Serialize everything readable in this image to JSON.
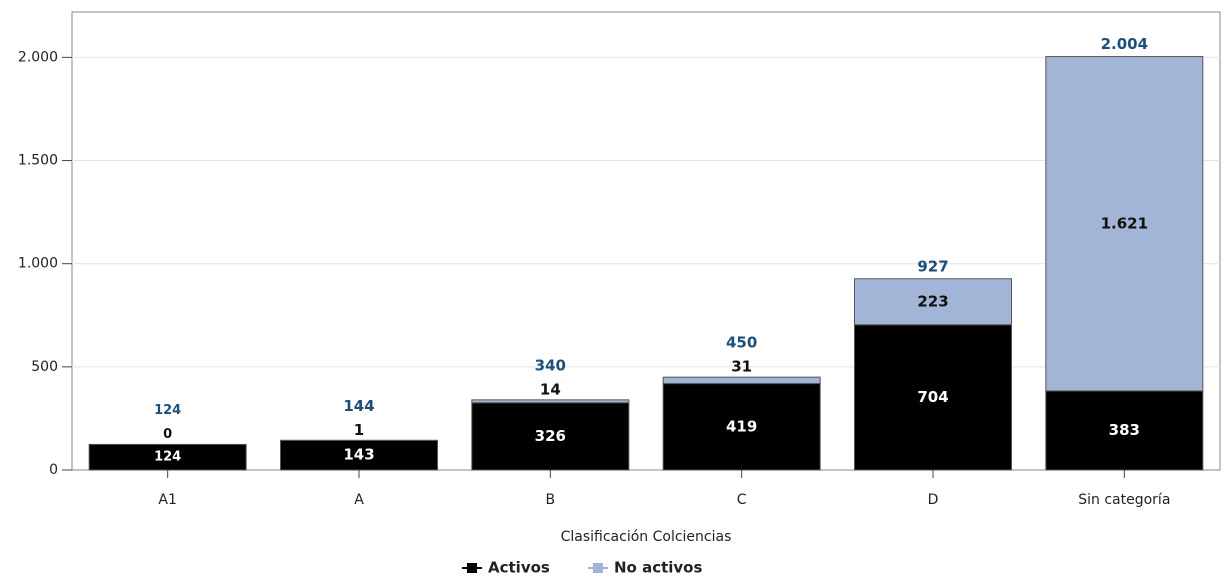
{
  "chart_data": {
    "type": "stacked_bar",
    "x_label": "Clasificación Colciencias",
    "categories": [
      "A1",
      "A",
      "B",
      "C",
      "D",
      "Sin categoría"
    ],
    "series": [
      {
        "name": "Activos",
        "color": "#000000",
        "values": [
          124,
          143,
          326,
          419,
          704,
          383
        ]
      },
      {
        "name": "No activos",
        "color": "#a3b5d6",
        "values": [
          0,
          1,
          14,
          31,
          223,
          1621
        ],
        "value_labels": [
          "0",
          "1",
          "14",
          "31",
          "223",
          "1.621"
        ]
      }
    ],
    "totals": {
      "values": [
        124,
        144,
        340,
        450,
        927,
        2004
      ],
      "value_labels": [
        "124",
        "144",
        "340",
        "450",
        "927",
        "2.004"
      ]
    },
    "ylim": [
      0,
      2220
    ],
    "yticks": [
      0,
      500,
      {
        "value": 1000,
        "label": "1.000"
      },
      {
        "value": 1500,
        "label": "1.500"
      },
      {
        "value": 2000,
        "label": "2.000"
      }
    ],
    "grid": true
  }
}
